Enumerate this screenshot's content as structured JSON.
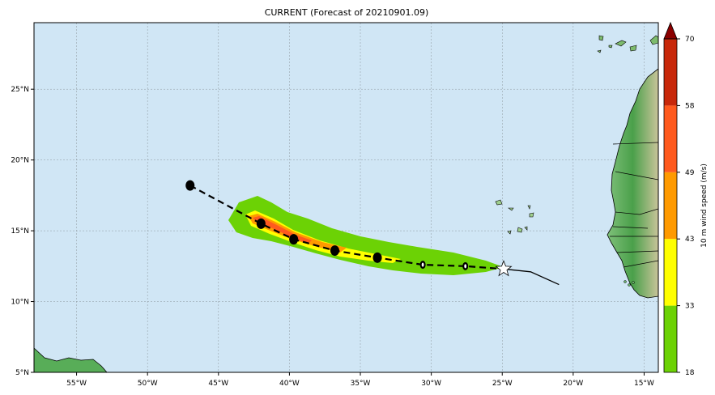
{
  "title": "CURRENT (Forecast of 20210901.09)",
  "map": {
    "lon_range": [
      -58,
      -14
    ],
    "lat_range": [
      5,
      29.7
    ],
    "x_ticks": [
      "55°W",
      "50°W",
      "45°W",
      "40°W",
      "35°W",
      "30°W",
      "25°W",
      "20°W",
      "15°W"
    ],
    "y_ticks": [
      "25°N",
      "20°N",
      "15°N",
      "10°N",
      "5°N"
    ],
    "ocean_color": "#d0e6f5"
  },
  "colorbar": {
    "label": "10 m wind speed (m/s)",
    "ticks": [
      "18",
      "33",
      "43",
      "49",
      "58",
      "70"
    ],
    "colors": [
      "#6cd205",
      "#ffff00",
      "#ff9a00",
      "#ff5a1e",
      "#c8280a"
    ],
    "extend_color": "#8b0000"
  },
  "track": {
    "forecast_points": [
      {
        "lon": -47.0,
        "lat": 18.2
      },
      {
        "lon": -42.0,
        "lat": 15.5
      },
      {
        "lon": -39.7,
        "lat": 14.4
      },
      {
        "lon": -36.8,
        "lat": 13.6
      },
      {
        "lon": -33.8,
        "lat": 13.1
      },
      {
        "lon": -30.6,
        "lat": 12.6
      },
      {
        "lon": -27.6,
        "lat": 12.5
      }
    ],
    "current_position": {
      "lon": -24.9,
      "lat": 12.3
    },
    "observed_path": [
      {
        "lon": -24.9,
        "lat": 12.3
      },
      {
        "lon": -23.0,
        "lat": 12.1
      },
      {
        "lon": -21.0,
        "lat": 11.2
      }
    ]
  }
}
